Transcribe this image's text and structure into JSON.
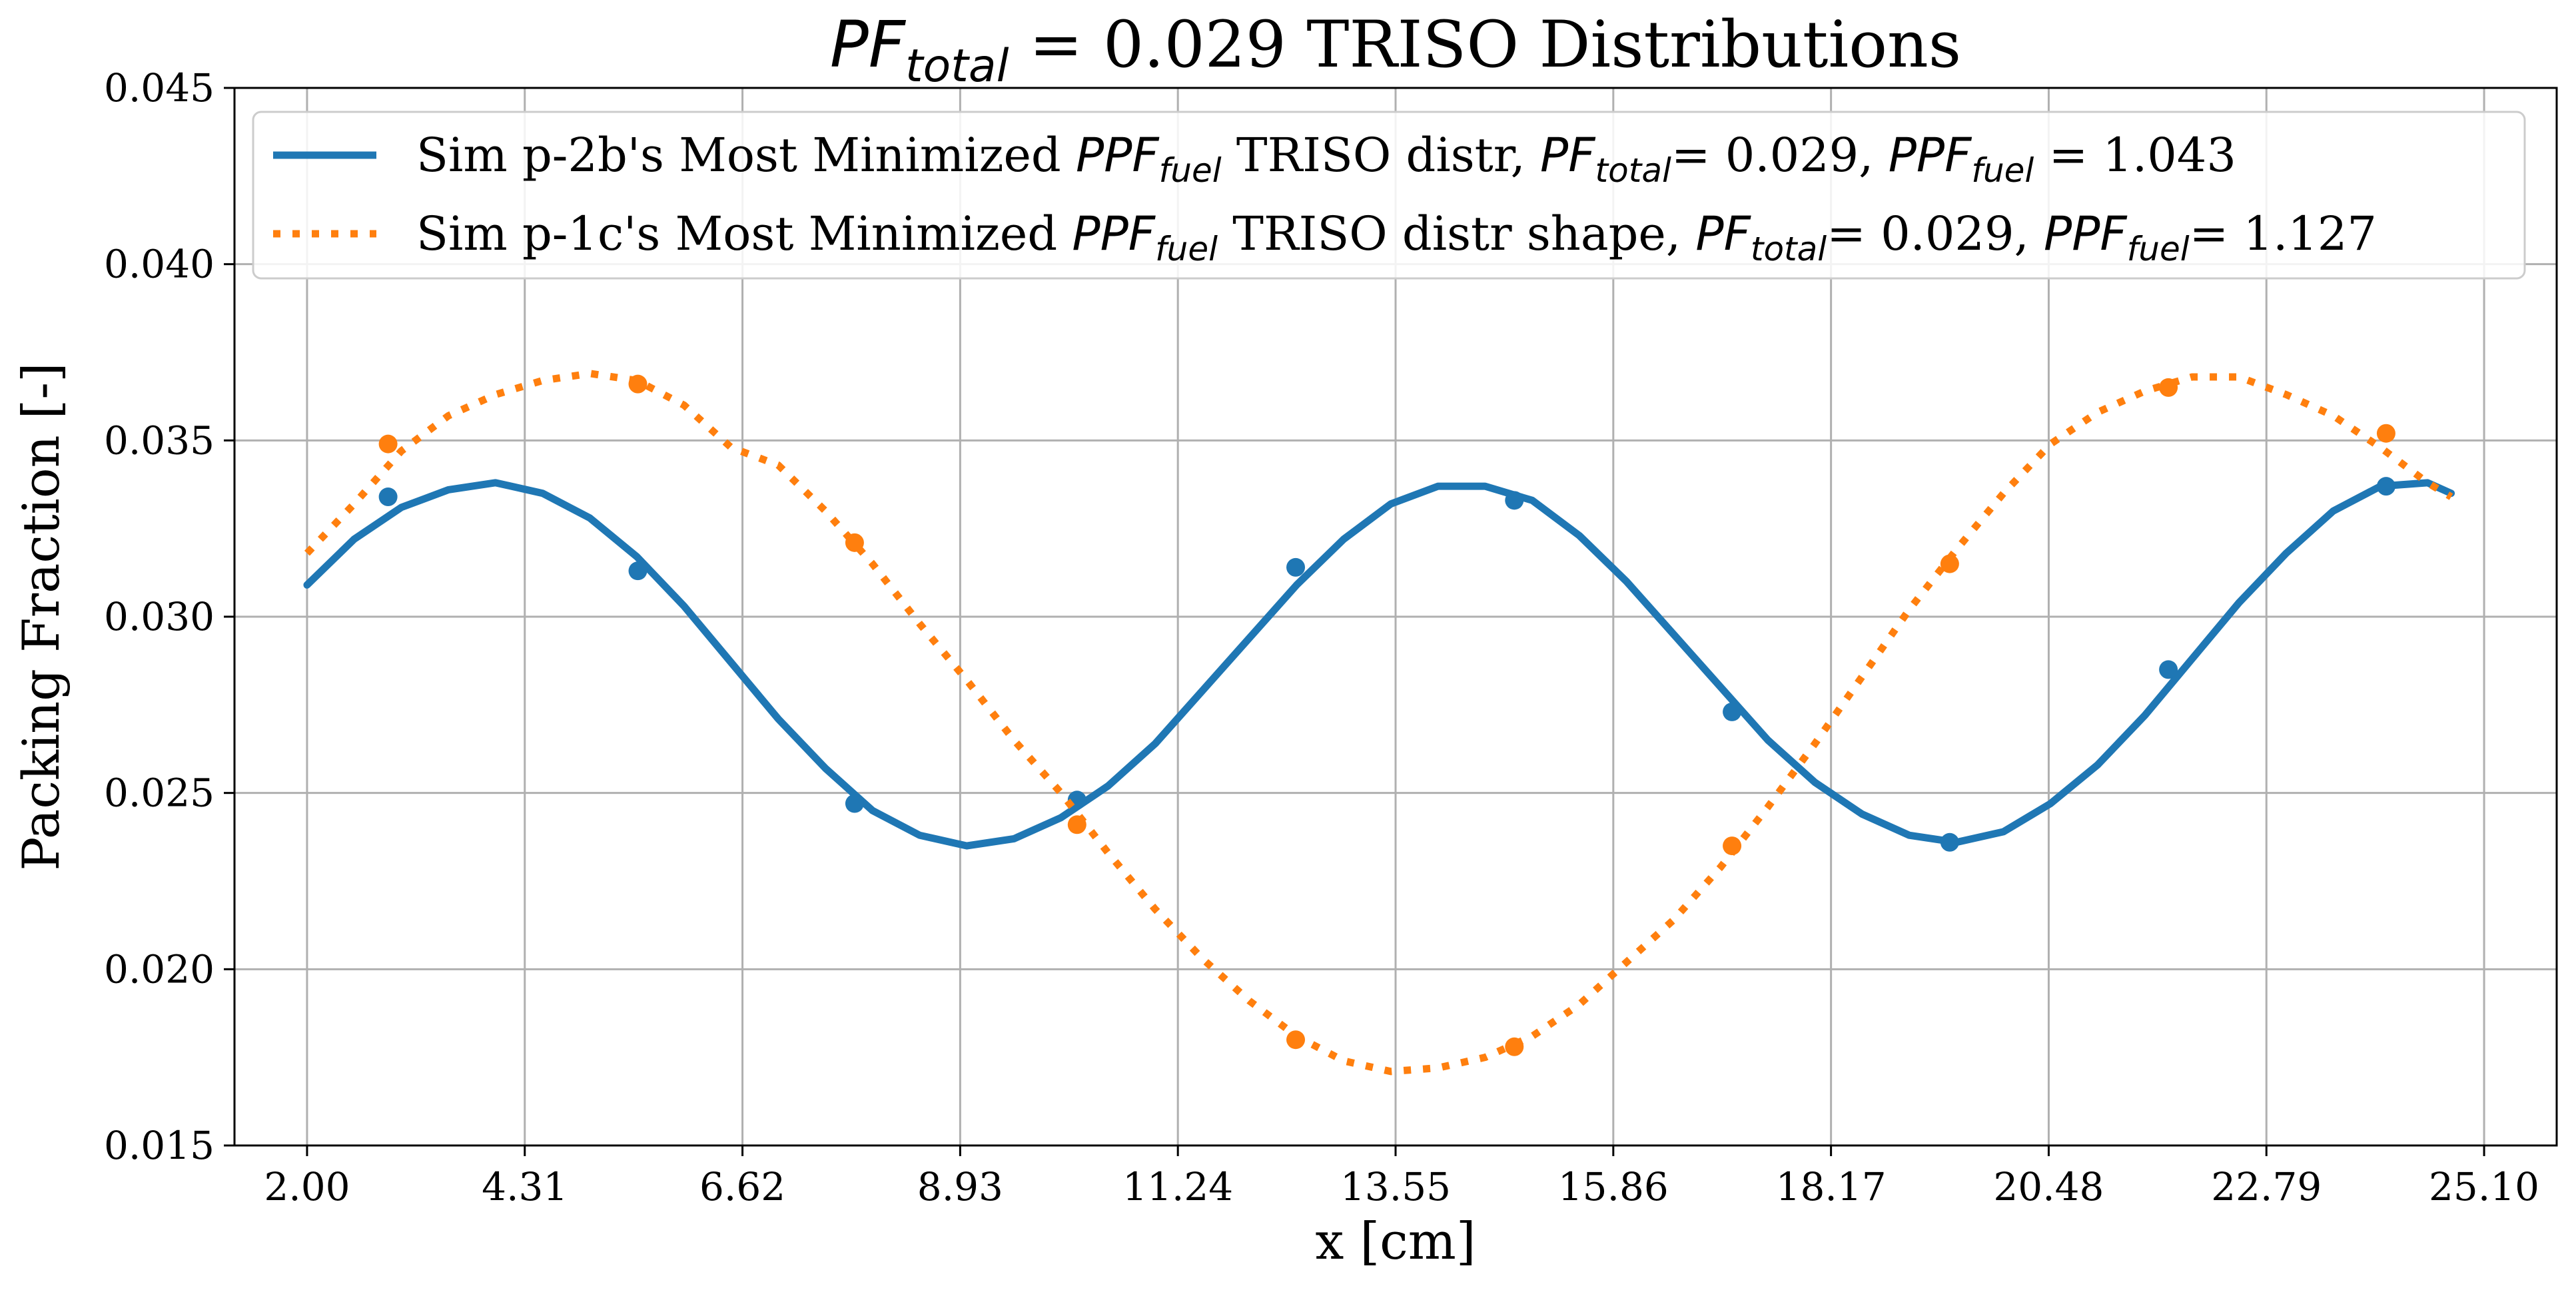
{
  "chart_data": {
    "type": "line",
    "title": {
      "math": "PF",
      "sub": "total",
      "rest": " = 0.029 TRISO Distributions"
    },
    "xlabel": "x [cm]",
    "ylabel": "Packing Fraction [-]",
    "xlim": [
      1.23,
      25.87
    ],
    "ylim": [
      0.015,
      0.045
    ],
    "x_ticks": [
      2.0,
      4.31,
      6.62,
      8.93,
      11.24,
      13.55,
      15.86,
      18.17,
      20.48,
      22.79,
      25.1
    ],
    "x_tick_labels": [
      "2.00",
      "4.31",
      "6.62",
      "8.93",
      "11.24",
      "13.55",
      "15.86",
      "18.17",
      "20.48",
      "22.79",
      "25.10"
    ],
    "y_ticks": [
      0.015,
      0.02,
      0.025,
      0.03,
      0.035,
      0.04,
      0.045
    ],
    "y_tick_labels": [
      "0.015",
      "0.020",
      "0.025",
      "0.030",
      "0.035",
      "0.040",
      "0.045"
    ],
    "grid": true,
    "legend_position": "top",
    "series": [
      {
        "name": "Sim p-2b's Most Minimized PPF_fuel TRISO distr, PF_total= 0.029, PPF_fuel = 1.043",
        "legend_parts": [
          {
            "t": "Sim p-2b's Most Minimized "
          },
          {
            "t": "PPF",
            "math": true
          },
          {
            "t": "fuel",
            "sub": true
          },
          {
            "t": " TRISO distr, "
          },
          {
            "t": "PF",
            "math": true
          },
          {
            "t": "total",
            "sub": true
          },
          {
            "t": "= 0.029, "
          },
          {
            "t": "PPF",
            "math": true
          },
          {
            "t": "fuel",
            "sub": true
          },
          {
            "t": " = 1.043"
          }
        ],
        "color": "#1f77b4",
        "style": "solid",
        "curve": [
          [
            2.0,
            0.0309
          ],
          [
            2.5,
            0.0322
          ],
          [
            3.0,
            0.0331
          ],
          [
            3.5,
            0.0336
          ],
          [
            4.0,
            0.0338
          ],
          [
            4.5,
            0.0335
          ],
          [
            5.0,
            0.0328
          ],
          [
            5.5,
            0.0317
          ],
          [
            6.0,
            0.0303
          ],
          [
            6.5,
            0.0287
          ],
          [
            7.0,
            0.0271
          ],
          [
            7.5,
            0.0257
          ],
          [
            8.0,
            0.0245
          ],
          [
            8.5,
            0.0238
          ],
          [
            9.0,
            0.0235
          ],
          [
            9.5,
            0.0237
          ],
          [
            10.0,
            0.0243
          ],
          [
            10.5,
            0.0252
          ],
          [
            11.0,
            0.0264
          ],
          [
            11.5,
            0.0279
          ],
          [
            12.0,
            0.0294
          ],
          [
            12.5,
            0.0309
          ],
          [
            13.0,
            0.0322
          ],
          [
            13.5,
            0.0332
          ],
          [
            14.0,
            0.0337
          ],
          [
            14.5,
            0.0337
          ],
          [
            15.0,
            0.0333
          ],
          [
            15.5,
            0.0323
          ],
          [
            16.0,
            0.031
          ],
          [
            16.5,
            0.0295
          ],
          [
            17.0,
            0.028
          ],
          [
            17.5,
            0.0265
          ],
          [
            18.0,
            0.0253
          ],
          [
            18.5,
            0.0244
          ],
          [
            19.0,
            0.0238
          ],
          [
            19.5,
            0.0236
          ],
          [
            20.0,
            0.0239
          ],
          [
            20.5,
            0.0247
          ],
          [
            21.0,
            0.0258
          ],
          [
            21.5,
            0.0272
          ],
          [
            22.0,
            0.0288
          ],
          [
            22.5,
            0.0304
          ],
          [
            23.0,
            0.0318
          ],
          [
            23.5,
            0.033
          ],
          [
            24.0,
            0.0337
          ],
          [
            24.5,
            0.0338
          ],
          [
            24.75,
            0.0335
          ]
        ],
        "markers": [
          [
            2.86,
            0.0334
          ],
          [
            5.51,
            0.0313
          ],
          [
            7.81,
            0.0247
          ],
          [
            10.17,
            0.0248
          ],
          [
            12.49,
            0.0314
          ],
          [
            14.81,
            0.0333
          ],
          [
            17.12,
            0.0273
          ],
          [
            19.43,
            0.0236
          ],
          [
            21.75,
            0.0285
          ],
          [
            24.06,
            0.0337
          ]
        ]
      },
      {
        "name": "Sim p-1c's Most Minimized PPF_fuel TRISO distr shape, PF_total= 0.029, PPF_fuel= 1.127",
        "legend_parts": [
          {
            "t": "Sim p-1c's Most Minimized "
          },
          {
            "t": "PPF",
            "math": true
          },
          {
            "t": "fuel",
            "sub": true
          },
          {
            "t": " TRISO distr shape, "
          },
          {
            "t": "PF",
            "math": true
          },
          {
            "t": "total",
            "sub": true
          },
          {
            "t": "= 0.029, "
          },
          {
            "t": "PPF",
            "math": true
          },
          {
            "t": "fuel",
            "sub": true
          },
          {
            "t": "= 1.127"
          }
        ],
        "color": "#ff7f0e",
        "style": "dotted",
        "curve": [
          [
            2.0,
            0.0318
          ],
          [
            2.5,
            0.0332
          ],
          [
            3.0,
            0.0347
          ],
          [
            3.5,
            0.0357
          ],
          [
            4.0,
            0.0363
          ],
          [
            4.5,
            0.0367
          ],
          [
            5.0,
            0.0369
          ],
          [
            5.5,
            0.0367
          ],
          [
            6.0,
            0.036
          ],
          [
            6.5,
            0.0348
          ],
          [
            7.0,
            0.0343
          ],
          [
            7.5,
            0.033
          ],
          [
            8.0,
            0.0315
          ],
          [
            8.5,
            0.0298
          ],
          [
            9.0,
            0.0282
          ],
          [
            9.5,
            0.0265
          ],
          [
            10.0,
            0.025
          ],
          [
            10.5,
            0.0233
          ],
          [
            11.0,
            0.0217
          ],
          [
            11.5,
            0.0203
          ],
          [
            12.0,
            0.0191
          ],
          [
            12.5,
            0.0181
          ],
          [
            13.0,
            0.0174
          ],
          [
            13.5,
            0.0171
          ],
          [
            14.0,
            0.0172
          ],
          [
            14.5,
            0.0175
          ],
          [
            15.0,
            0.0181
          ],
          [
            15.5,
            0.019
          ],
          [
            16.0,
            0.0202
          ],
          [
            16.5,
            0.0214
          ],
          [
            17.0,
            0.0229
          ],
          [
            17.5,
            0.0246
          ],
          [
            18.0,
            0.0264
          ],
          [
            18.5,
            0.0283
          ],
          [
            19.0,
            0.0302
          ],
          [
            19.5,
            0.0319
          ],
          [
            20.0,
            0.0335
          ],
          [
            20.5,
            0.0349
          ],
          [
            21.0,
            0.0358
          ],
          [
            21.5,
            0.0364
          ],
          [
            22.0,
            0.0368
          ],
          [
            22.5,
            0.0368
          ],
          [
            23.0,
            0.0363
          ],
          [
            23.5,
            0.0357
          ],
          [
            24.0,
            0.0348
          ],
          [
            24.5,
            0.0338
          ],
          [
            24.75,
            0.0334
          ]
        ],
        "markers": [
          [
            2.86,
            0.0349
          ],
          [
            5.51,
            0.0366
          ],
          [
            7.81,
            0.0321
          ],
          [
            10.17,
            0.0241
          ],
          [
            12.49,
            0.018
          ],
          [
            14.81,
            0.0178
          ],
          [
            17.12,
            0.0235
          ],
          [
            19.43,
            0.0315
          ],
          [
            21.75,
            0.0365
          ],
          [
            24.06,
            0.0352
          ]
        ]
      }
    ]
  }
}
